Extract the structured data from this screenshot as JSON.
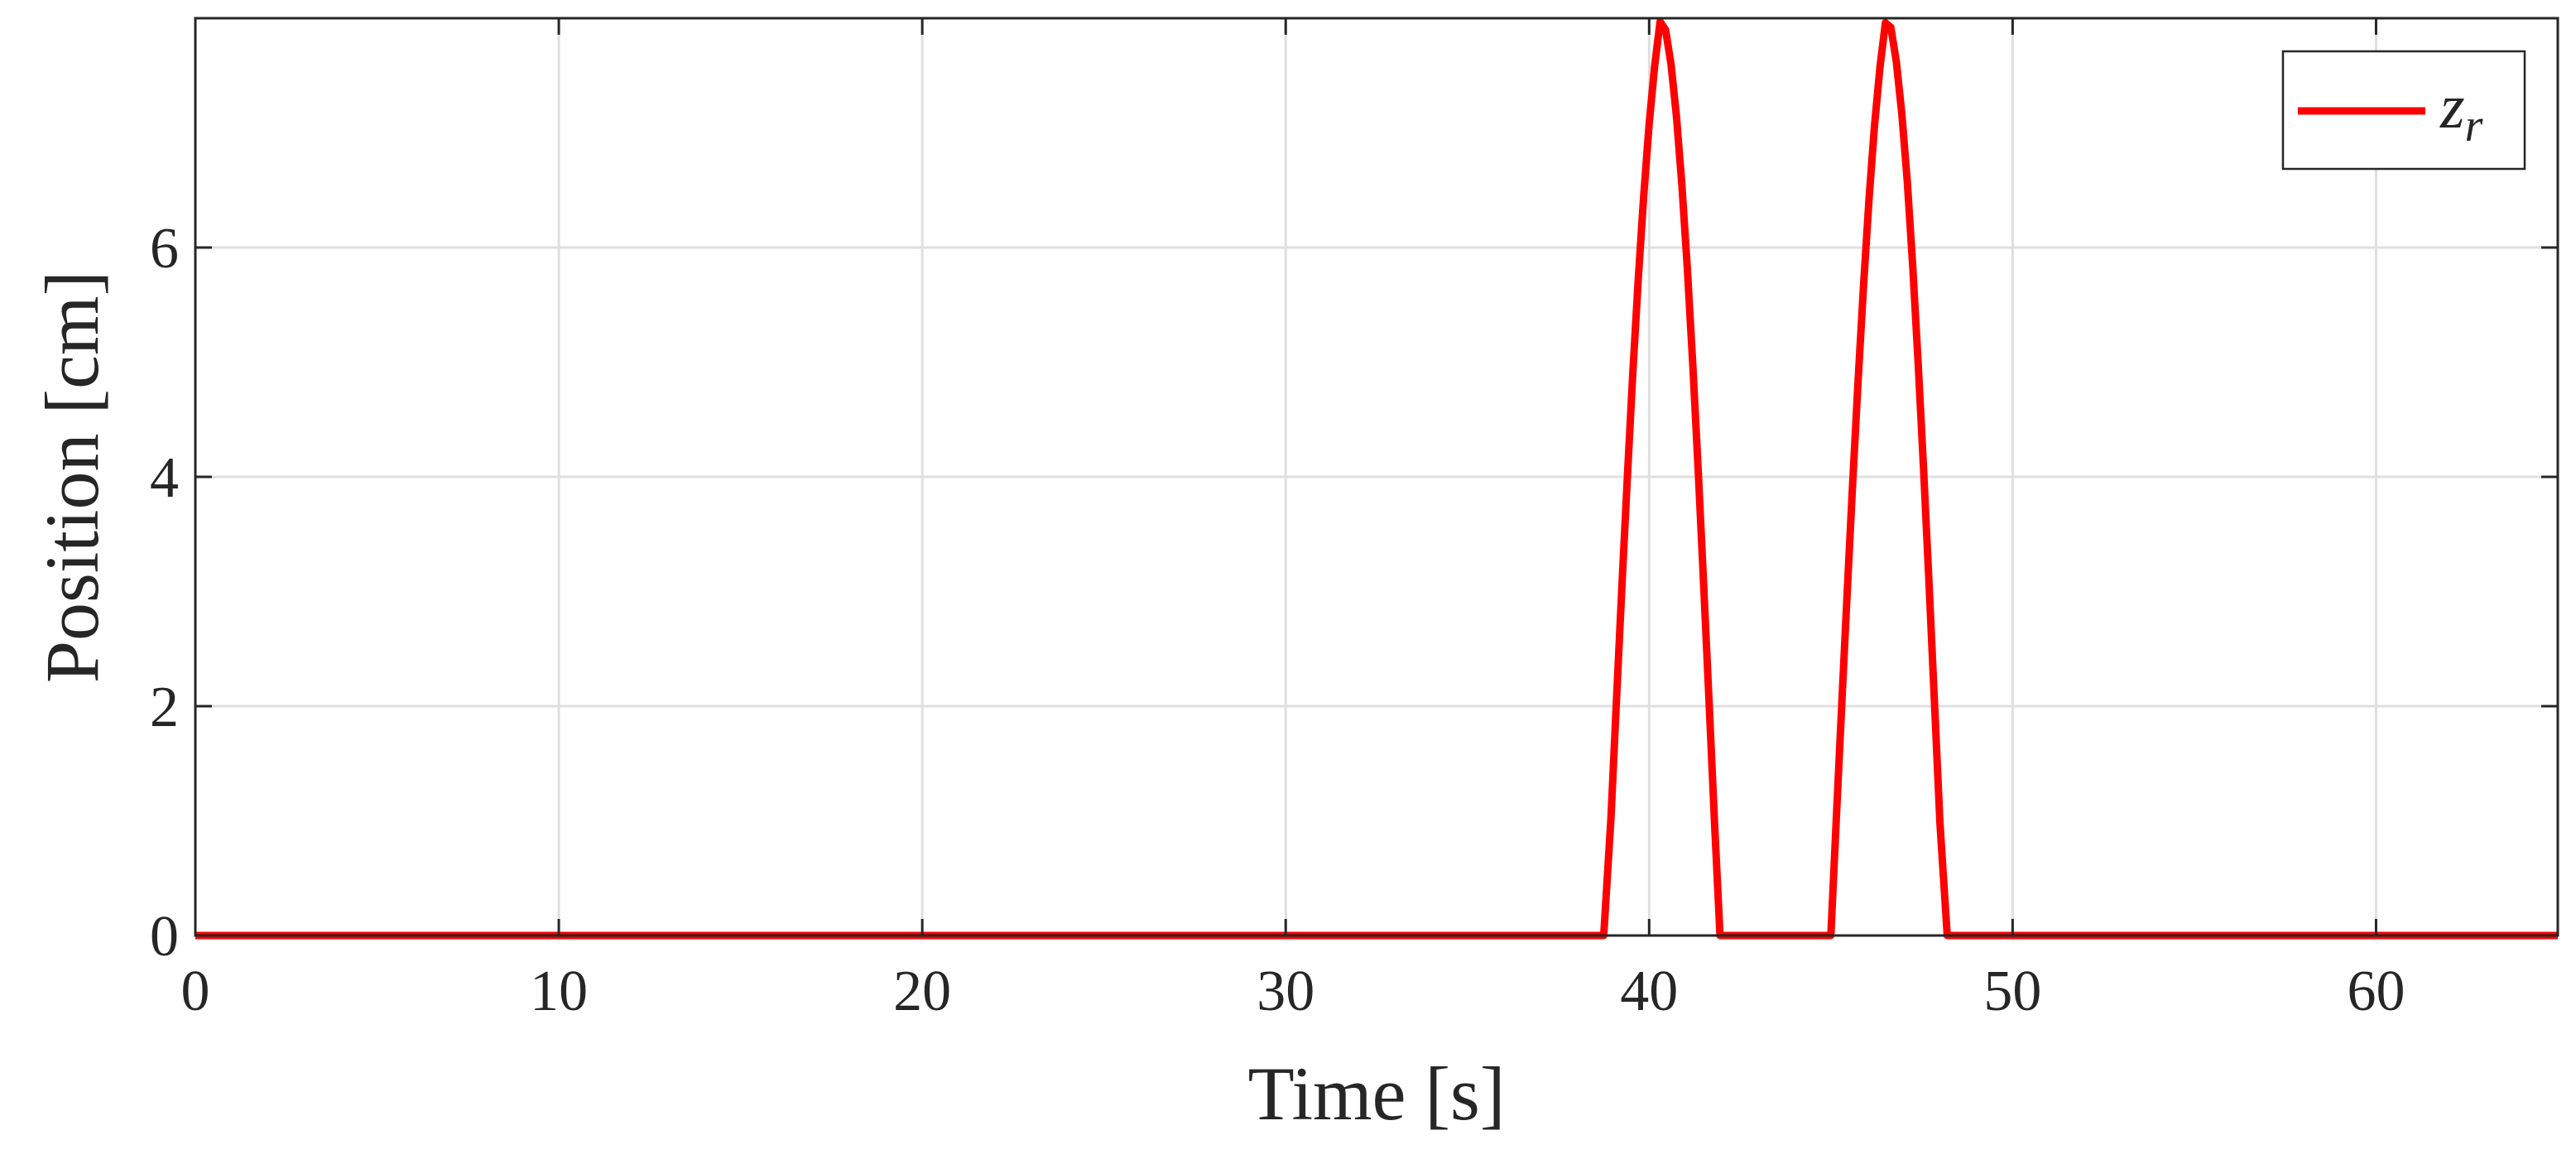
{
  "chart_data": {
    "type": "line",
    "xlabel": "Time [s]",
    "ylabel": "Position [cm]",
    "xlim": [
      0,
      65
    ],
    "ylim": [
      0,
      8
    ],
    "xticks": [
      0,
      10,
      20,
      30,
      40,
      50,
      60
    ],
    "yticks": [
      0,
      2,
      4,
      6
    ],
    "xtick_labels": [
      "0",
      "10",
      "20",
      "30",
      "40",
      "50",
      "60"
    ],
    "ytick_labels": [
      "0",
      "2",
      "4",
      "6"
    ],
    "grid": true,
    "legend": {
      "position": "top-right",
      "entries": [
        "zr"
      ]
    },
    "colors": {
      "series": "#ff0000",
      "grid": "#dfdfdf",
      "axis": "#262626"
    },
    "series": [
      {
        "name": "zr",
        "x": [
          0,
          38.75,
          38.95,
          39.1,
          39.25,
          39.4,
          39.55,
          39.7,
          39.85,
          40.0,
          40.15,
          40.3,
          40.45,
          40.6,
          40.75,
          40.9,
          41.05,
          41.2,
          41.35,
          41.5,
          41.65,
          41.8,
          41.95,
          45.0,
          45.15,
          45.3,
          45.45,
          45.6,
          45.75,
          45.9,
          46.05,
          46.2,
          46.35,
          46.5,
          46.65,
          46.8,
          46.95,
          47.1,
          47.25,
          47.4,
          47.55,
          47.7,
          47.85,
          48.0,
          48.2,
          65
        ],
        "y": [
          0,
          0,
          1.03,
          2.05,
          3.05,
          4.0,
          4.9,
          5.72,
          6.45,
          7.08,
          7.58,
          7.97,
          7.9,
          7.6,
          7.15,
          6.55,
          5.82,
          4.98,
          4.05,
          3.05,
          2.02,
          0.98,
          0,
          0,
          1.02,
          2.02,
          3.0,
          3.95,
          4.85,
          5.68,
          6.42,
          7.06,
          7.57,
          7.96,
          7.92,
          7.62,
          7.17,
          6.58,
          5.85,
          5.0,
          4.07,
          3.07,
          2.03,
          0.98,
          0,
          0
        ]
      }
    ]
  }
}
